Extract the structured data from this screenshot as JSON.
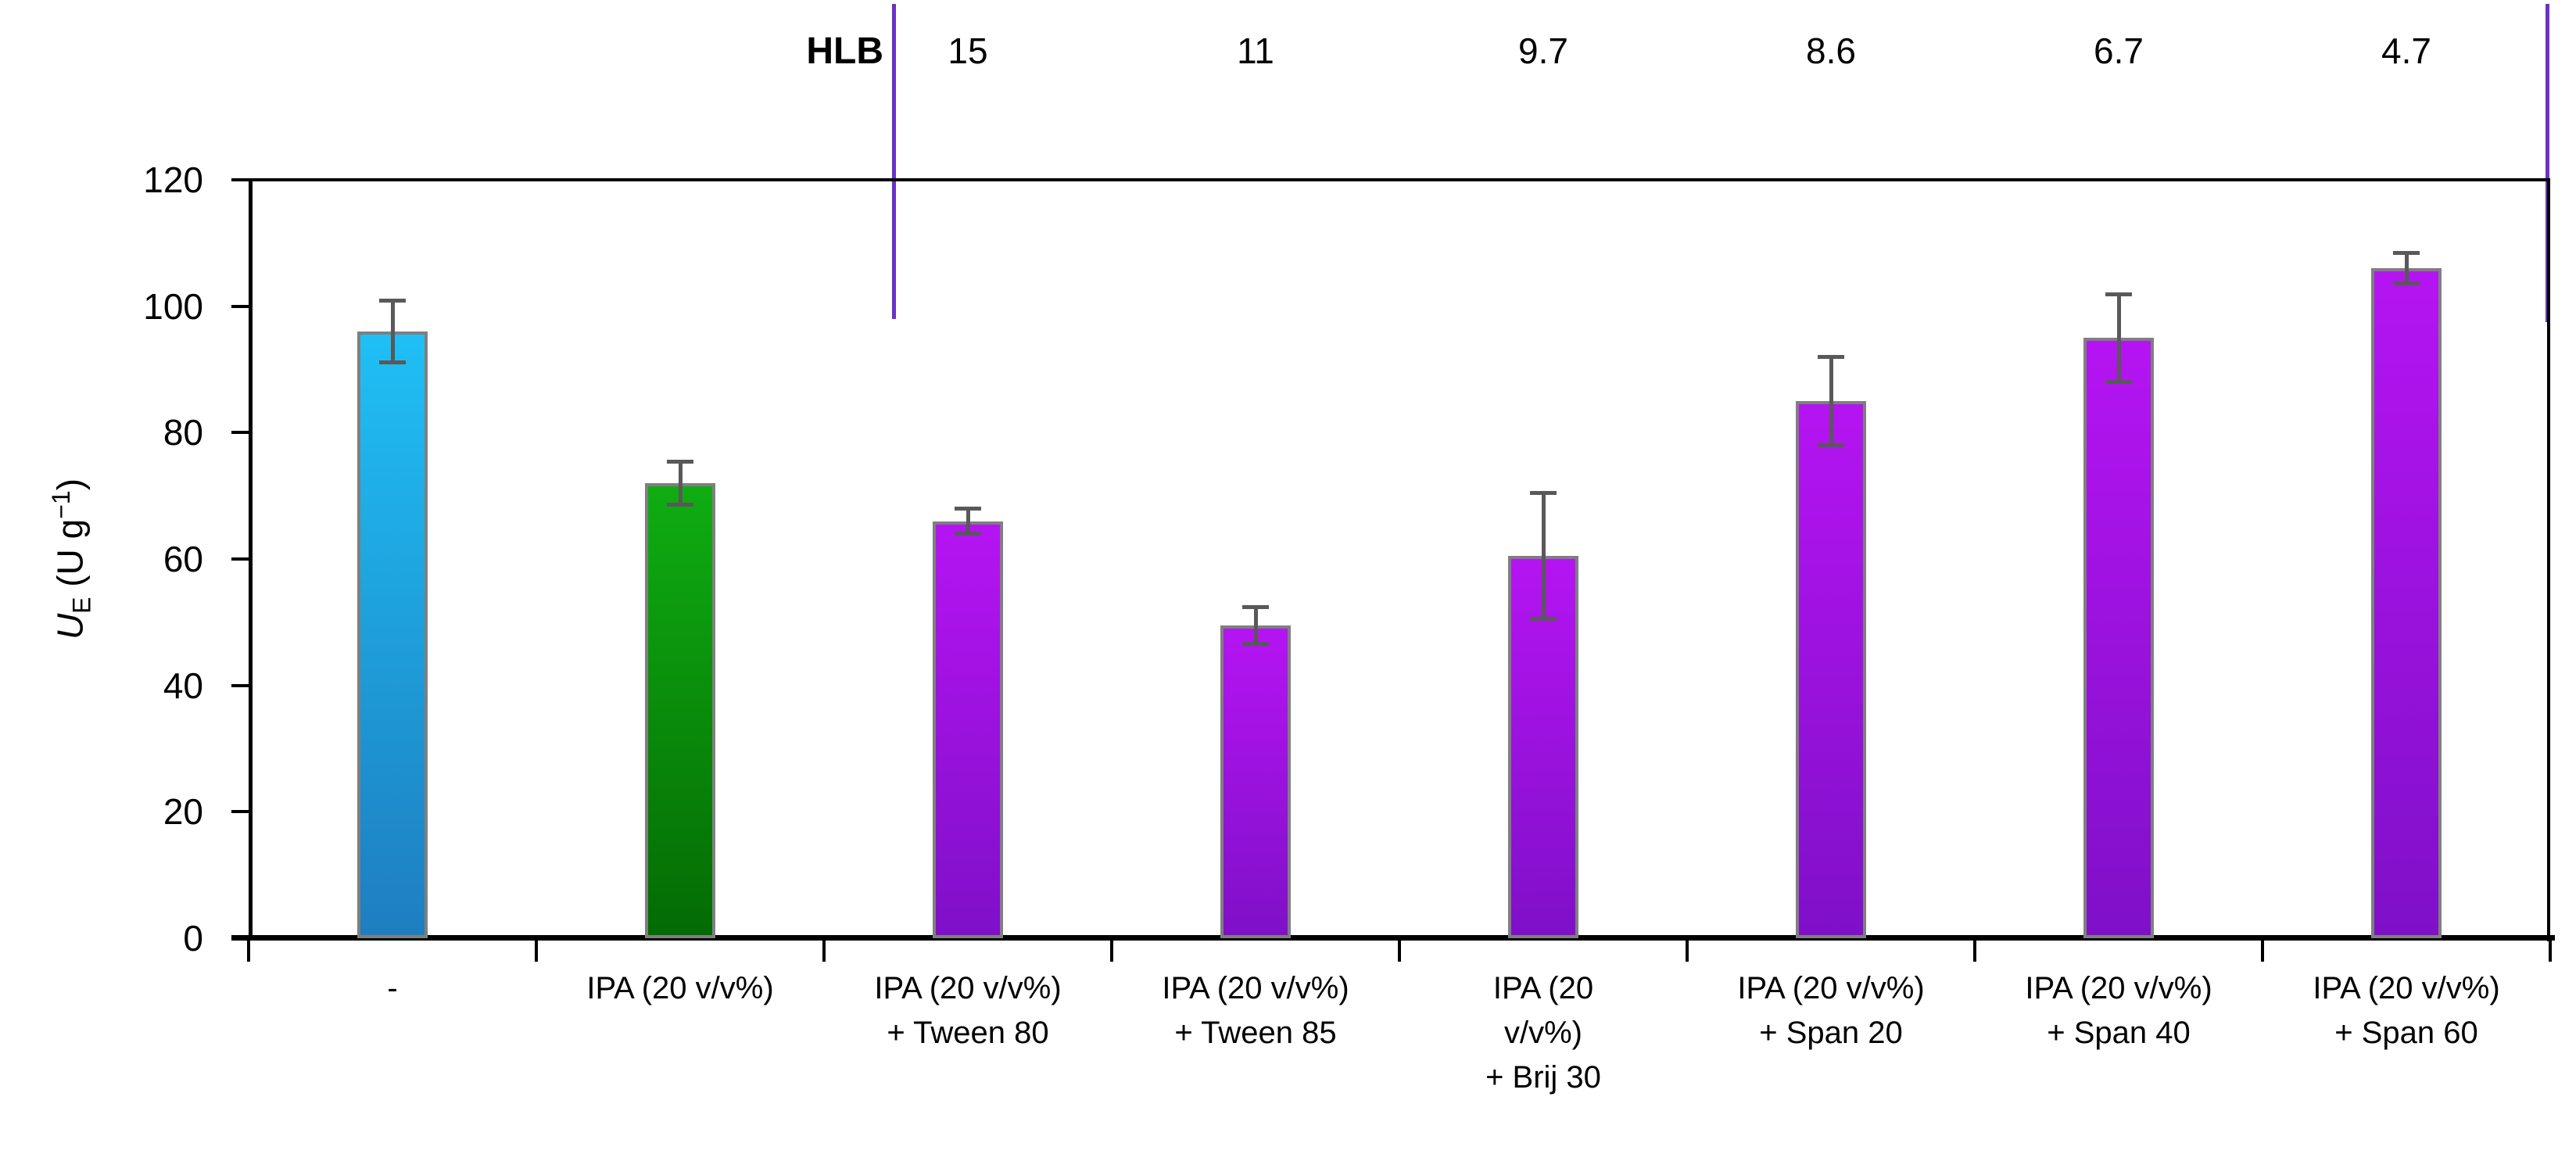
{
  "colors": {
    "axis": "#000000",
    "bar_border": "#7F7F7F",
    "error_bar": "#595959",
    "hlb_divider": "#6A32C8",
    "bar_palette": {
      "cyan": {
        "top": "#1FBFF5",
        "bottom": "#1E7EC0"
      },
      "green": {
        "top": "#0FAD12",
        "bottom": "#046B04"
      },
      "purple": {
        "top": "#B514F2",
        "bottom": "#7F10C8"
      }
    }
  },
  "hlb": {
    "label": "HLB",
    "values": [
      "",
      "",
      "15",
      "11",
      "9.7",
      "8.6",
      "6.7",
      "4.7"
    ]
  },
  "y_axis": {
    "title_parts": {
      "u": "U",
      "sub": "E",
      "mid": " (U g",
      "sup": "−1",
      "close": ")"
    },
    "ticks": [
      "0",
      "20",
      "40",
      "60",
      "80",
      "100",
      "120"
    ]
  },
  "chart_data": {
    "type": "bar",
    "title": "",
    "xlabel": "",
    "ylabel": "U_E (U g^-1)",
    "ylim": [
      0,
      120
    ],
    "ytick_step": 20,
    "grid": false,
    "legend": "none",
    "categories": [
      "-",
      "IPA (20 v/v%)",
      "IPA (20 v/v%)\n+ Tween 80",
      "IPA (20 v/v%)\n+ Tween 85",
      "IPA (20\nv/v%)\n+ Brij 30",
      "IPA (20 v/v%)\n+ Span 20",
      "IPA (20 v/v%)\n+ Span 40",
      "IPA (20 v/v%)\n+ Span 60"
    ],
    "values": [
      96,
      72,
      66,
      49.5,
      60.5,
      85,
      95,
      106
    ],
    "error_bars": [
      5,
      3.5,
      2,
      3,
      10,
      7,
      7,
      2.5
    ],
    "bar_color_keys": [
      "cyan",
      "green",
      "purple",
      "purple",
      "purple",
      "purple",
      "purple",
      "purple"
    ],
    "hlb_row": {
      "label": "HLB",
      "values_per_category": [
        "",
        "",
        "15",
        "11",
        "9.7",
        "8.6",
        "6.7",
        "4.7"
      ]
    }
  }
}
